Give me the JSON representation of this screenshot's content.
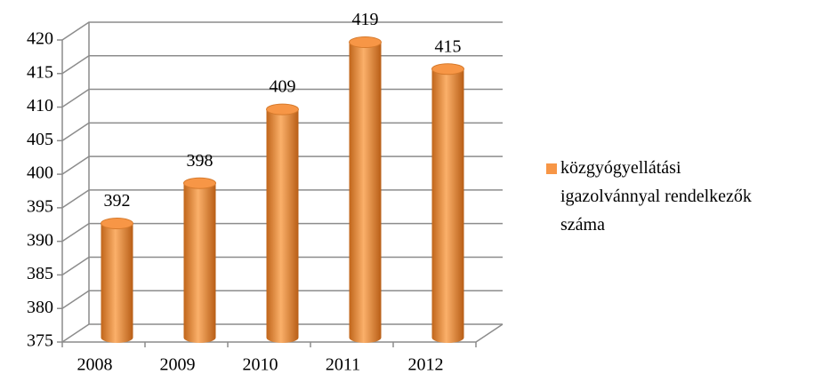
{
  "chart_data": {
    "type": "bar3d",
    "categories": [
      "2008",
      "2009",
      "2010",
      "2011",
      "2012"
    ],
    "series": [
      {
        "name": "közgyógyellátási igazolvánnyal rendelkezők száma",
        "color": "#f79646",
        "values": [
          392,
          398,
          409,
          419,
          415
        ]
      }
    ],
    "ylim": [
      375,
      420
    ],
    "yticks": [
      375,
      380,
      385,
      390,
      395,
      400,
      405,
      410,
      415,
      420
    ],
    "grid": true,
    "legend": "right"
  }
}
